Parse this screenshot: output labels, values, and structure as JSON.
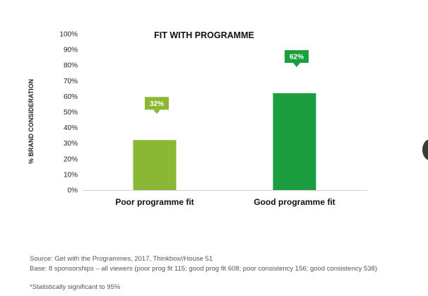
{
  "chart_data": {
    "type": "bar",
    "title": "FIT WITH PROGRAMME",
    "ylabel": "% BRAND CONSIDERATION",
    "xlabel": "",
    "ylim": [
      0,
      100
    ],
    "yticks": [
      "0%",
      "10%",
      "20%",
      "30%",
      "40%",
      "50%",
      "60%",
      "70%",
      "80%",
      "90%",
      "100%"
    ],
    "categories": [
      "Poor programme fit",
      "Good programme fit"
    ],
    "values": [
      32,
      62
    ],
    "value_labels": [
      "32%",
      "62%"
    ],
    "colors": [
      "#8ab834",
      "#1a9e3f"
    ],
    "grid": false,
    "legend": "none"
  },
  "footnotes": {
    "source": "Source: Get with the Programmes, 2017, Thinkbox//House 51",
    "base": "Base: 8 sponsorships – all viewers (poor prog fit 115; good prog fit 608; poor consistency 156; good consistency 538)",
    "significance": "*Statistically significant to 95%"
  }
}
